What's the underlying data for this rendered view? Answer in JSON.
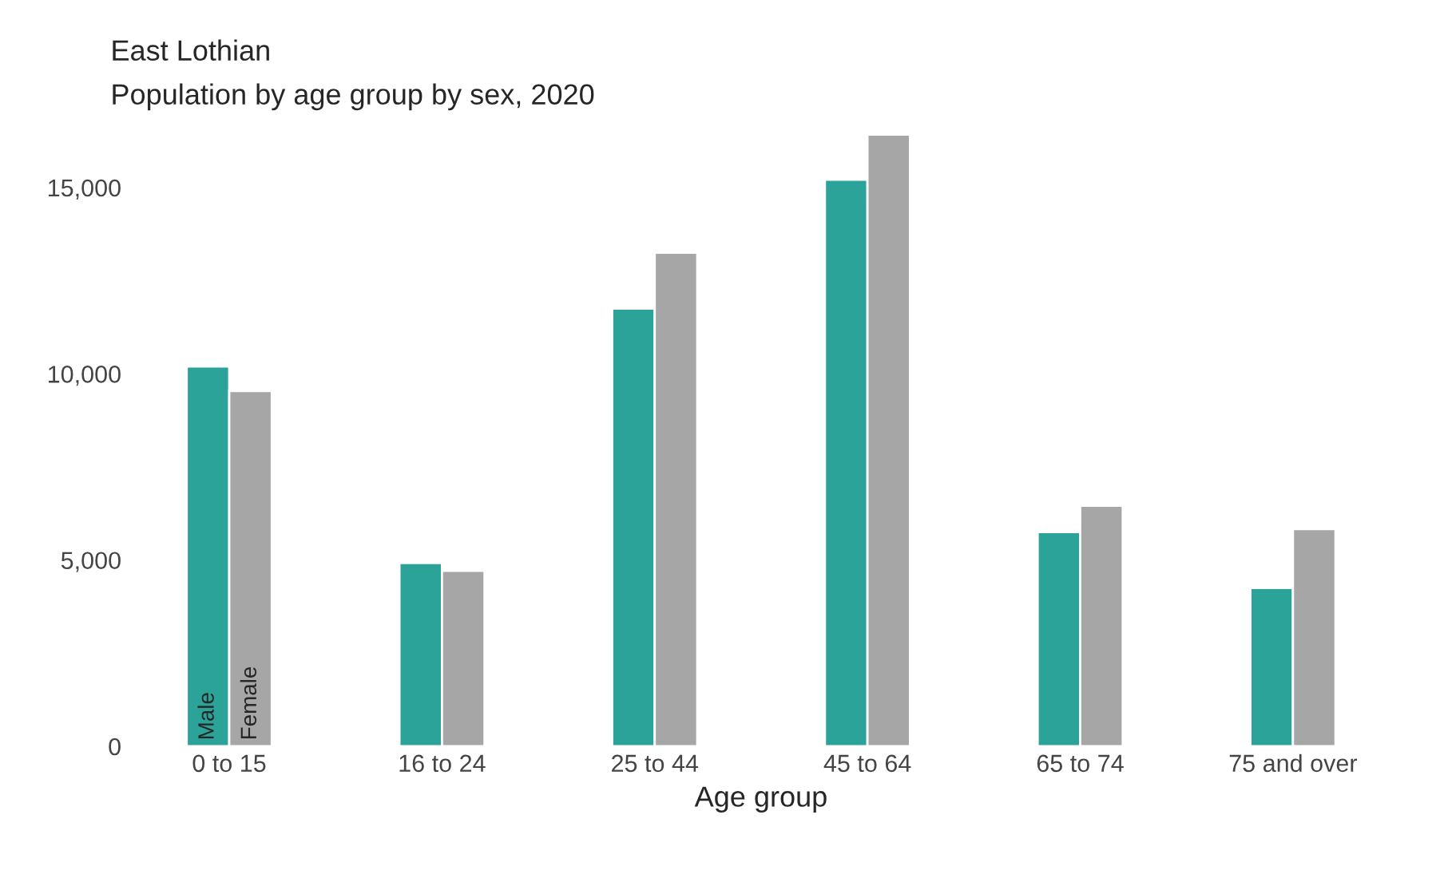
{
  "chart_data": {
    "type": "bar",
    "title": "East Lothian",
    "subtitle": "Population by age group by sex, 2020",
    "xlabel": "Age group",
    "categories": [
      "0 to 15",
      "16 to 24",
      "25 to 44",
      "45 to 64",
      "65 to 74",
      "75 and over"
    ],
    "series": [
      {
        "name": "Male",
        "color": "#2ca399",
        "values": [
          10200,
          4920,
          11750,
          15210,
          5750,
          4250
        ]
      },
      {
        "name": "Female",
        "color": "#a6a6a6",
        "values": [
          9540,
          4710,
          13250,
          16420,
          6460,
          5830
        ]
      }
    ],
    "ylim": [
      0,
      16500
    ],
    "yticks": [
      0,
      {
        "value": 5000,
        "label": "5,000"
      },
      {
        "value": 10000,
        "label": "10,000"
      },
      {
        "value": 15000,
        "label": "15,000"
      }
    ],
    "grid": false,
    "legend": false
  }
}
